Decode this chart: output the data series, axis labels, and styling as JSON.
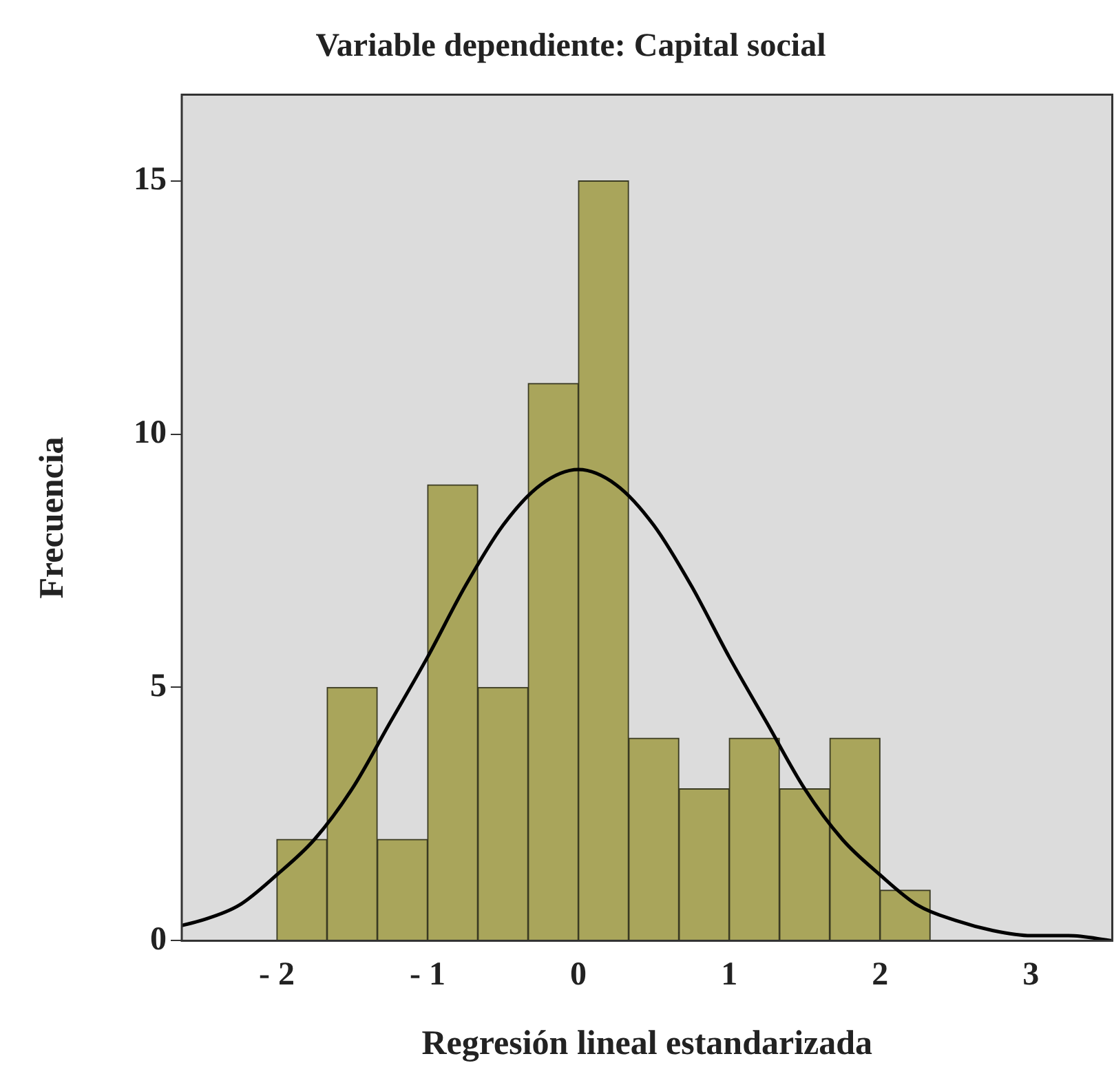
{
  "chart_data": {
    "type": "histogram",
    "title": "Variable dependiente: Capital social",
    "xlabel": "Regresión lineal estandarizada",
    "ylabel": "Frecuencia",
    "bins": [
      -2,
      -1.667,
      -1.333,
      -1,
      -0.667,
      -0.333,
      0,
      0.333,
      0.667,
      1,
      1.333,
      1.667,
      2,
      2.333
    ],
    "values": [
      2,
      5,
      2,
      9,
      5,
      11,
      15,
      4,
      3,
      4,
      3,
      4,
      1
    ],
    "color": "#a9a55b",
    "series": [
      {
        "type": "line",
        "color": "#000000",
        "x": [
          -2.63,
          -2.5,
          -2.25,
          -2,
          -1.75,
          -1.5,
          -1.25,
          -1,
          -0.75,
          -0.5,
          -0.25,
          0,
          0.25,
          0.5,
          0.75,
          1,
          1.25,
          1.5,
          1.75,
          2,
          2.25,
          2.5,
          2.75,
          3,
          3.25,
          3.54
        ],
        "values": [
          0.3,
          0.4,
          0.7,
          1.3,
          2,
          3,
          4.3,
          5.6,
          7,
          8.2,
          9,
          9.3,
          9,
          8.2,
          7,
          5.6,
          4.3,
          3,
          2,
          1.3,
          0.7,
          0.4,
          0.2,
          0.1,
          0.1,
          0
        ]
      }
    ],
    "xlim": [
      -2.63,
      3.54
    ],
    "ylim": [
      0,
      16.7
    ],
    "xticks": [
      {
        "value": -2,
        "label": "- 2"
      },
      {
        "value": -1,
        "label": "- 1"
      },
      0,
      1,
      2,
      3
    ],
    "yticks": [
      0,
      5,
      10,
      15
    ],
    "grid": false,
    "legend": false,
    "marker": "none",
    "line_style": "solid"
  }
}
